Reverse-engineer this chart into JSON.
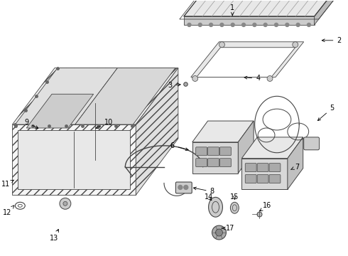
{
  "background_color": "#ffffff",
  "line_color": "#444444",
  "label_color": "#000000",
  "label_fontsize": 7.0,
  "figsize": [
    4.9,
    3.6
  ],
  "dpi": 100
}
